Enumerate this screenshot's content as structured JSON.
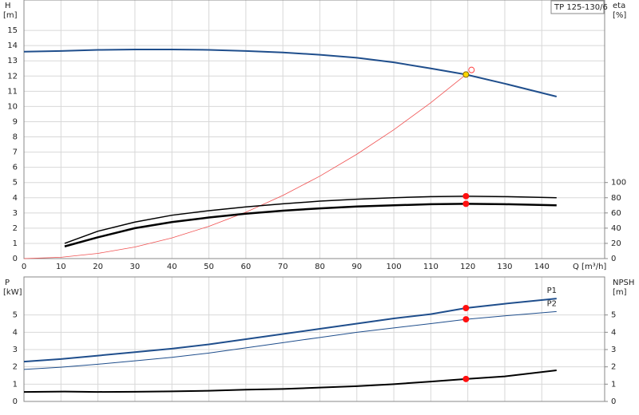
{
  "chart_data": [
    {
      "type": "line",
      "ylabel": "H",
      "yunit": "[m]",
      "y2label": "eta",
      "y2unit": "[%]",
      "xlabel": "Q [m³/h]",
      "annotation": "TP 125-130/6",
      "grid": true,
      "xlim": [
        0,
        157
      ],
      "xticks": [
        0,
        10,
        20,
        30,
        40,
        50,
        60,
        70,
        80,
        90,
        100,
        110,
        120,
        130,
        140
      ],
      "ylim": [
        0,
        17
      ],
      "yticks": [
        0,
        1,
        2,
        3,
        4,
        5,
        6,
        7,
        8,
        9,
        10,
        11,
        12,
        13,
        14,
        15
      ],
      "y2lim": [
        0,
        340
      ],
      "y2ticks": [
        0,
        20,
        40,
        60,
        80,
        100
      ],
      "series": [
        {
          "mode": "line",
          "color": "#8b0000",
          "width": 0.8,
          "stroke": "#f05050",
          "x": [
            0,
            10,
            20,
            30,
            40,
            50,
            60,
            70,
            80,
            90,
            100,
            110,
            119.5
          ],
          "values": [
            0,
            0.085,
            0.34,
            0.76,
            1.36,
            2.12,
            3.05,
            4.15,
            5.42,
            6.86,
            8.47,
            10.25,
            12.1
          ]
        },
        {
          "mode": "line",
          "color": "#1f4e8c",
          "width": 2,
          "x": [
            0,
            10,
            20,
            30,
            40,
            50,
            60,
            70,
            80,
            90,
            100,
            110,
            119.5,
            130,
            144
          ],
          "values": [
            13.6,
            13.65,
            13.72,
            13.75,
            13.75,
            13.72,
            13.65,
            13.55,
            13.4,
            13.2,
            12.9,
            12.5,
            12.1,
            11.5,
            10.65
          ]
        },
        {
          "mode": "line",
          "color": "#000000",
          "width": 1.5,
          "axis": "y2",
          "x": [
            11,
            20,
            30,
            40,
            50,
            60,
            70,
            80,
            90,
            100,
            110,
            119.5,
            130,
            144
          ],
          "values": [
            20,
            36,
            48,
            57,
            63,
            68,
            72,
            75.5,
            78,
            80,
            81.5,
            82,
            81.5,
            80
          ]
        },
        {
          "mode": "line",
          "color": "#000000",
          "width": 2.5,
          "axis": "y2",
          "x": [
            11,
            20,
            30,
            40,
            50,
            60,
            70,
            80,
            90,
            100,
            110,
            119.5,
            130,
            144
          ],
          "values": [
            16,
            28,
            40,
            48,
            54,
            59,
            63,
            66,
            68.5,
            70,
            71.5,
            72,
            71.5,
            70
          ]
        },
        {
          "mode": "marker",
          "color": "#ff1010",
          "axis": "y2",
          "x": [
            119.5,
            119.5
          ],
          "values": [
            82,
            72
          ]
        },
        {
          "mode": "open-marker",
          "color": "#ff4040",
          "x": [
            121
          ],
          "values": [
            12.4
          ]
        },
        {
          "mode": "marker",
          "color": "#ffd700",
          "x": [
            119.5
          ],
          "values": [
            12.1
          ]
        }
      ]
    },
    {
      "type": "line",
      "ylabel": "P",
      "yunit": "[kW]",
      "y2label": "NPSH",
      "y2unit": "[m]",
      "grid": true,
      "xlim": [
        0,
        157
      ],
      "ylim": [
        0,
        7.2
      ],
      "yticks": [
        0,
        1,
        2,
        3,
        4,
        5
      ],
      "y2lim": [
        0,
        7.2
      ],
      "y2ticks": [
        0,
        1,
        2,
        3,
        4,
        5
      ],
      "series": [
        {
          "name": "P1",
          "mode": "line",
          "color": "#1f4e8c",
          "width": 2,
          "x": [
            0,
            10,
            20,
            30,
            40,
            50,
            60,
            70,
            80,
            90,
            100,
            110,
            119.5,
            130,
            144
          ],
          "values": [
            2.3,
            2.45,
            2.65,
            2.85,
            3.05,
            3.3,
            3.6,
            3.9,
            4.2,
            4.5,
            4.8,
            5.05,
            5.4,
            5.65,
            5.95
          ]
        },
        {
          "name": "P2",
          "mode": "line",
          "color": "#1f4e8c",
          "width": 1,
          "x": [
            0,
            10,
            20,
            30,
            40,
            50,
            60,
            70,
            80,
            90,
            100,
            110,
            119.5,
            130,
            144
          ],
          "values": [
            1.85,
            1.98,
            2.15,
            2.35,
            2.55,
            2.8,
            3.1,
            3.4,
            3.7,
            4.0,
            4.25,
            4.5,
            4.75,
            4.95,
            5.2
          ]
        },
        {
          "mode": "line",
          "color": "#000000",
          "width": 2,
          "axis": "y2",
          "x": [
            0,
            11,
            20,
            30,
            40,
            50,
            60,
            70,
            80,
            90,
            100,
            110,
            119.5,
            130,
            144
          ],
          "values": [
            0.55,
            0.57,
            0.55,
            0.56,
            0.58,
            0.62,
            0.68,
            0.72,
            0.8,
            0.88,
            1.0,
            1.15,
            1.3,
            1.45,
            1.8
          ]
        },
        {
          "mode": "marker",
          "color": "#ff1010",
          "x": [
            119.5,
            119.5
          ],
          "values": [
            5.4,
            4.75
          ]
        },
        {
          "mode": "marker",
          "color": "#ff1010",
          "axis": "y2",
          "x": [
            119.5
          ],
          "values": [
            1.3
          ]
        }
      ]
    }
  ]
}
